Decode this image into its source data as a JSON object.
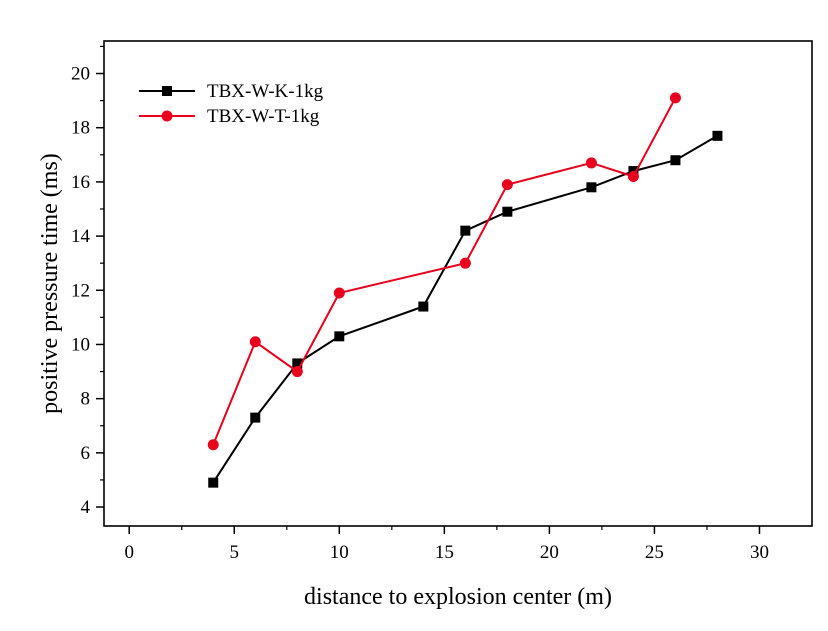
{
  "chart_data": {
    "type": "line",
    "xlabel": "distance to explosion center (m)",
    "ylabel": "positive pressure time (ms)",
    "xlim": [
      -1.2,
      32.5
    ],
    "ylim": [
      3.3,
      21.2
    ],
    "xticks": [
      0,
      5,
      10,
      15,
      20,
      25,
      30
    ],
    "yticks": [
      4,
      6,
      8,
      10,
      12,
      14,
      16,
      18,
      20
    ],
    "minor_ticks": true,
    "grid": false,
    "legend_position": "top-left",
    "series": [
      {
        "name": "TBX-W-K-1kg",
        "color": "#000000",
        "marker": "square",
        "x": [
          4,
          6,
          8,
          10,
          14,
          16,
          18,
          22,
          24,
          26,
          28
        ],
        "y": [
          4.9,
          7.3,
          9.3,
          10.3,
          11.4,
          14.2,
          14.9,
          15.8,
          16.4,
          16.8,
          17.7
        ]
      },
      {
        "name": "TBX-W-T-1kg",
        "color": "#e8001c",
        "marker": "circle",
        "x": [
          4,
          6,
          8,
          10,
          16,
          18,
          22,
          24,
          26
        ],
        "y": [
          6.3,
          10.1,
          9.0,
          11.9,
          13.0,
          15.9,
          16.7,
          16.2,
          19.1
        ]
      }
    ]
  }
}
